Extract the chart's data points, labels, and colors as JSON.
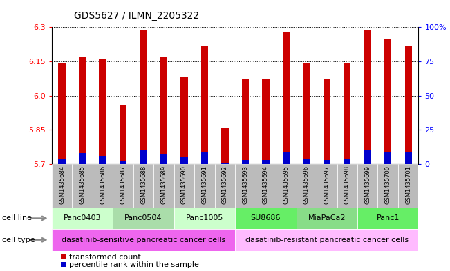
{
  "title": "GDS5627 / ILMN_2205322",
  "samples": [
    "GSM1435684",
    "GSM1435685",
    "GSM1435686",
    "GSM1435687",
    "GSM1435688",
    "GSM1435689",
    "GSM1435690",
    "GSM1435691",
    "GSM1435692",
    "GSM1435693",
    "GSM1435694",
    "GSM1435695",
    "GSM1435696",
    "GSM1435697",
    "GSM1435698",
    "GSM1435699",
    "GSM1435700",
    "GSM1435701"
  ],
  "transformed_count": [
    6.14,
    6.17,
    6.16,
    5.96,
    6.29,
    6.17,
    6.08,
    6.22,
    5.855,
    6.075,
    6.075,
    6.28,
    6.14,
    6.075,
    6.14,
    6.29,
    6.25,
    6.22
  ],
  "percentile_rank": [
    4,
    8,
    6,
    2,
    10,
    7,
    5,
    9,
    1,
    3,
    3,
    9,
    4,
    3,
    4,
    10,
    9,
    9
  ],
  "ymin": 5.7,
  "ymax": 6.3,
  "yticks": [
    5.7,
    5.85,
    6.0,
    6.15,
    6.3
  ],
  "right_ytick_labels": [
    "0",
    "25",
    "50",
    "75",
    "100%"
  ],
  "bar_color": "#cc0000",
  "percentile_color": "#0000cc",
  "cell_lines": [
    {
      "label": "Panc0403",
      "start": 0,
      "end": 3,
      "color": "#ccffcc"
    },
    {
      "label": "Panc0504",
      "start": 3,
      "end": 6,
      "color": "#aaddaa"
    },
    {
      "label": "Panc1005",
      "start": 6,
      "end": 9,
      "color": "#ccffcc"
    },
    {
      "label": "SU8686",
      "start": 9,
      "end": 12,
      "color": "#66ee66"
    },
    {
      "label": "MiaPaCa2",
      "start": 12,
      "end": 15,
      "color": "#88dd88"
    },
    {
      "label": "Panc1",
      "start": 15,
      "end": 18,
      "color": "#66ee66"
    }
  ],
  "cell_types": [
    {
      "label": "dasatinib-sensitive pancreatic cancer cells",
      "start": 0,
      "end": 9,
      "color": "#ee66ee"
    },
    {
      "label": "dasatinib-resistant pancreatic cancer cells",
      "start": 9,
      "end": 18,
      "color": "#ffbbff"
    }
  ],
  "legend_red_label": "transformed count",
  "legend_blue_label": "percentile rank within the sample",
  "tick_bg_color": "#bbbbbb",
  "bar_width": 0.35
}
